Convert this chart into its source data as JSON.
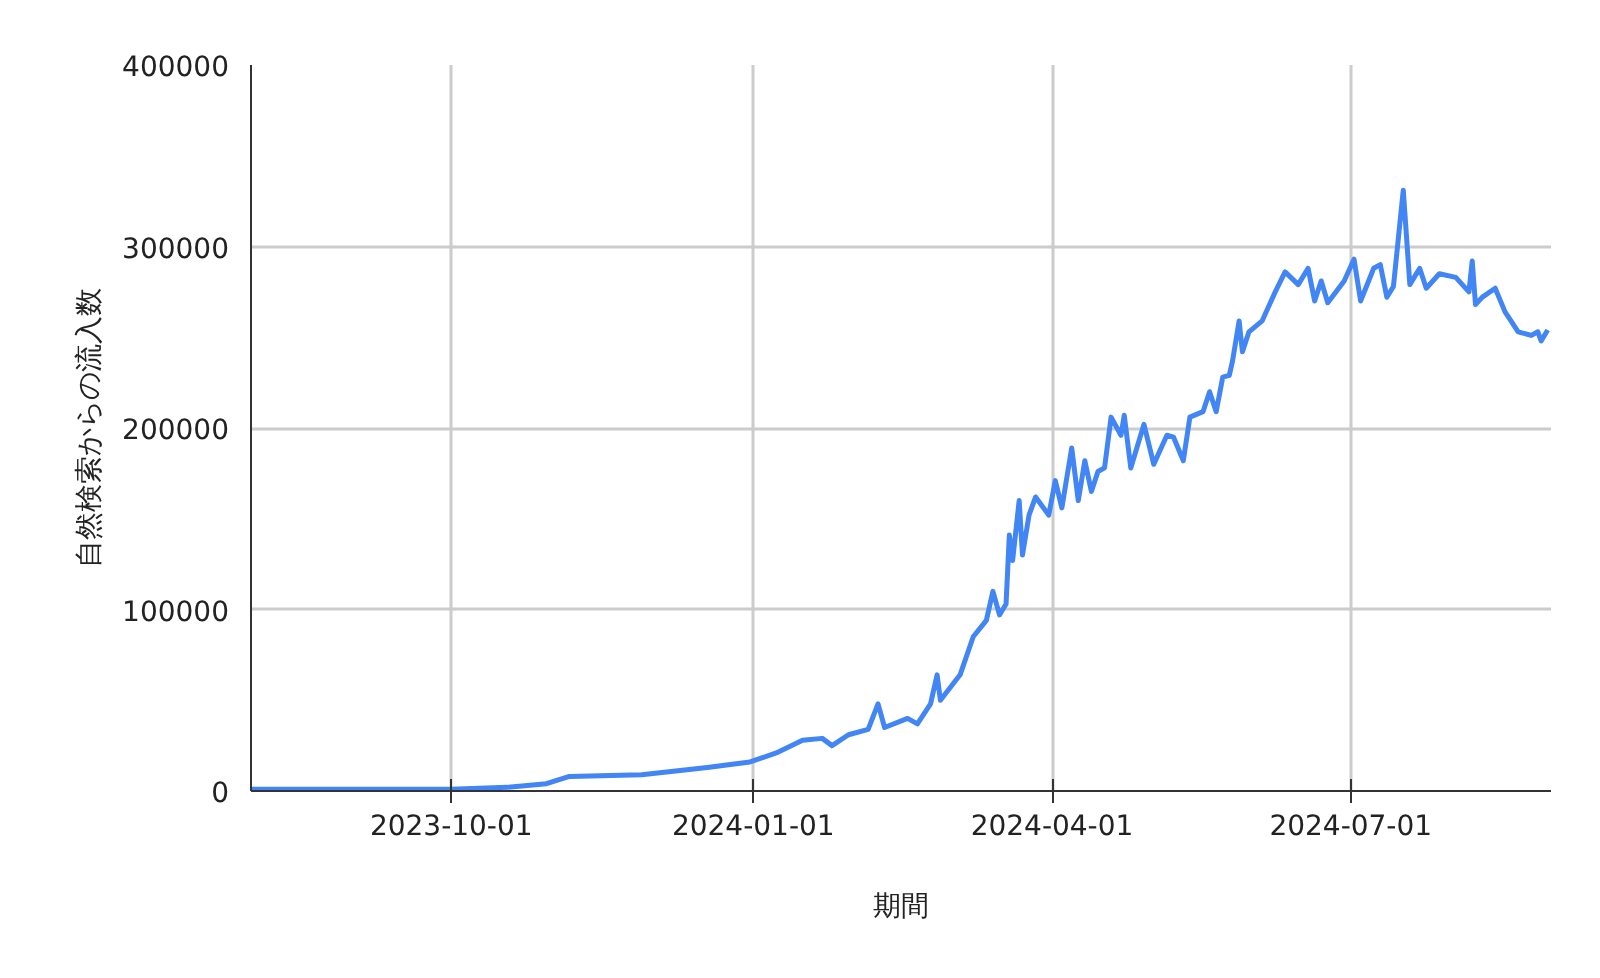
{
  "chart_data": {
    "type": "line",
    "xlabel": "期間",
    "ylabel": "自然検索からの流入数",
    "x": [
      "2023-08-01",
      "2023-10-01",
      "2023-10-18",
      "2023-10-30",
      "2023-11-06",
      "2023-11-28",
      "2023-12-18",
      "2023-12-31",
      "2024-01-08",
      "2024-01-16",
      "2024-01-22",
      "2024-01-25",
      "2024-01-30",
      "2024-02-05",
      "2024-02-08",
      "2024-02-10",
      "2024-02-17",
      "2024-02-20",
      "2024-02-24",
      "2024-02-26",
      "2024-02-27",
      "2024-03-04",
      "2024-03-08",
      "2024-03-12",
      "2024-03-14",
      "2024-03-16",
      "2024-03-18",
      "2024-03-19",
      "2024-03-20",
      "2024-03-22",
      "2024-03-23",
      "2024-03-25",
      "2024-03-27",
      "2024-03-31",
      "2024-04-02",
      "2024-04-04",
      "2024-04-07",
      "2024-04-09",
      "2024-04-11",
      "2024-04-13",
      "2024-04-15",
      "2024-04-17",
      "2024-04-19",
      "2024-04-22",
      "2024-04-23",
      "2024-04-25",
      "2024-04-29",
      "2024-05-02",
      "2024-05-06",
      "2024-05-08",
      "2024-05-11",
      "2024-05-13",
      "2024-05-17",
      "2024-05-19",
      "2024-05-21",
      "2024-05-23",
      "2024-05-25",
      "2024-05-26",
      "2024-05-28",
      "2024-05-29",
      "2024-05-31",
      "2024-06-04",
      "2024-06-08",
      "2024-06-11",
      "2024-06-15",
      "2024-06-18",
      "2024-06-20",
      "2024-06-22",
      "2024-06-24",
      "2024-06-29",
      "2024-07-02",
      "2024-07-04",
      "2024-07-08",
      "2024-07-10",
      "2024-07-12",
      "2024-07-14",
      "2024-07-17",
      "2024-07-19",
      "2024-07-22",
      "2024-07-24",
      "2024-07-28",
      "2024-08-02",
      "2024-08-06",
      "2024-08-07",
      "2024-08-08",
      "2024-08-10",
      "2024-08-14",
      "2024-08-17",
      "2024-08-21",
      "2024-08-25",
      "2024-08-27",
      "2024-08-28",
      "2024-08-30"
    ],
    "series": [
      {
        "color": "#4285f4",
        "values": [
          1000,
          1000,
          2000,
          4000,
          8000,
          9000,
          13000,
          16000,
          21000,
          28000,
          29000,
          25000,
          31000,
          34000,
          48000,
          35000,
          40000,
          37000,
          48000,
          64000,
          50000,
          64000,
          85000,
          94000,
          110000,
          97000,
          103000,
          141000,
          127000,
          160000,
          130000,
          152000,
          162000,
          152000,
          171000,
          156000,
          189000,
          160000,
          182000,
          165000,
          176000,
          178000,
          206000,
          196000,
          207000,
          178000,
          202000,
          180000,
          196000,
          195000,
          182000,
          206000,
          209000,
          220000,
          209000,
          228000,
          229000,
          237000,
          259000,
          242000,
          253000,
          259000,
          275000,
          286000,
          279000,
          288000,
          270000,
          281000,
          269000,
          281000,
          293000,
          270000,
          288000,
          290000,
          272000,
          278000,
          331000,
          279000,
          288000,
          277000,
          285000,
          283000,
          275000,
          292000,
          268000,
          272000,
          277000,
          264000,
          253000,
          251000,
          253000,
          248000,
          254000
        ]
      }
    ],
    "xlim": [
      "2023-08-01",
      "2024-08-31"
    ],
    "xticks": [
      "2023-10-01",
      "2024-01-01",
      "2024-04-01",
      "2024-07-01"
    ],
    "ylim": [
      0,
      400000
    ],
    "yticks": [
      0,
      100000,
      200000,
      300000,
      400000
    ],
    "grid": true,
    "marker": "none",
    "line_style": "solid"
  }
}
